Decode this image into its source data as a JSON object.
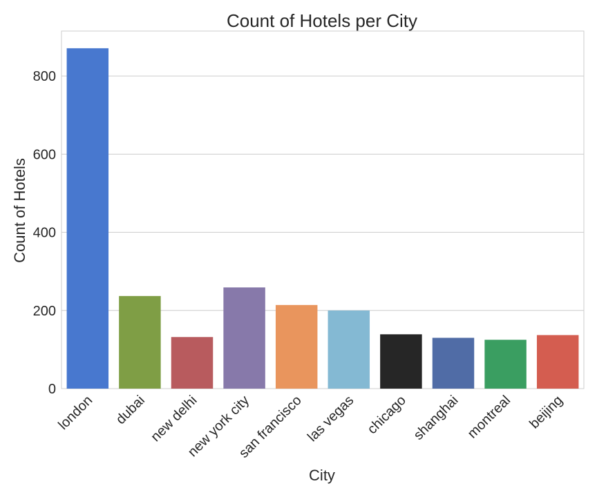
{
  "chart_data": {
    "type": "bar",
    "title": "Count of Hotels per City",
    "xlabel": "City",
    "ylabel": "Count of Hotels",
    "categories": [
      "london",
      "dubai",
      "new delhi",
      "new york city",
      "san francisco",
      "las vegas",
      "chicago",
      "shanghai",
      "montreal",
      "beijing"
    ],
    "values": [
      871,
      237,
      132,
      259,
      214,
      200,
      139,
      130,
      125,
      137
    ],
    "colors": [
      "#4878cf",
      "#7f9e45",
      "#b85b5e",
      "#8779aa",
      "#e9955d",
      "#84b9d3",
      "#262626",
      "#506ca6",
      "#3a9e61",
      "#d45d50"
    ],
    "ylim": [
      0,
      915
    ],
    "yticks": [
      0,
      200,
      400,
      600,
      800
    ],
    "grid": "horizontal",
    "legend": "none"
  }
}
